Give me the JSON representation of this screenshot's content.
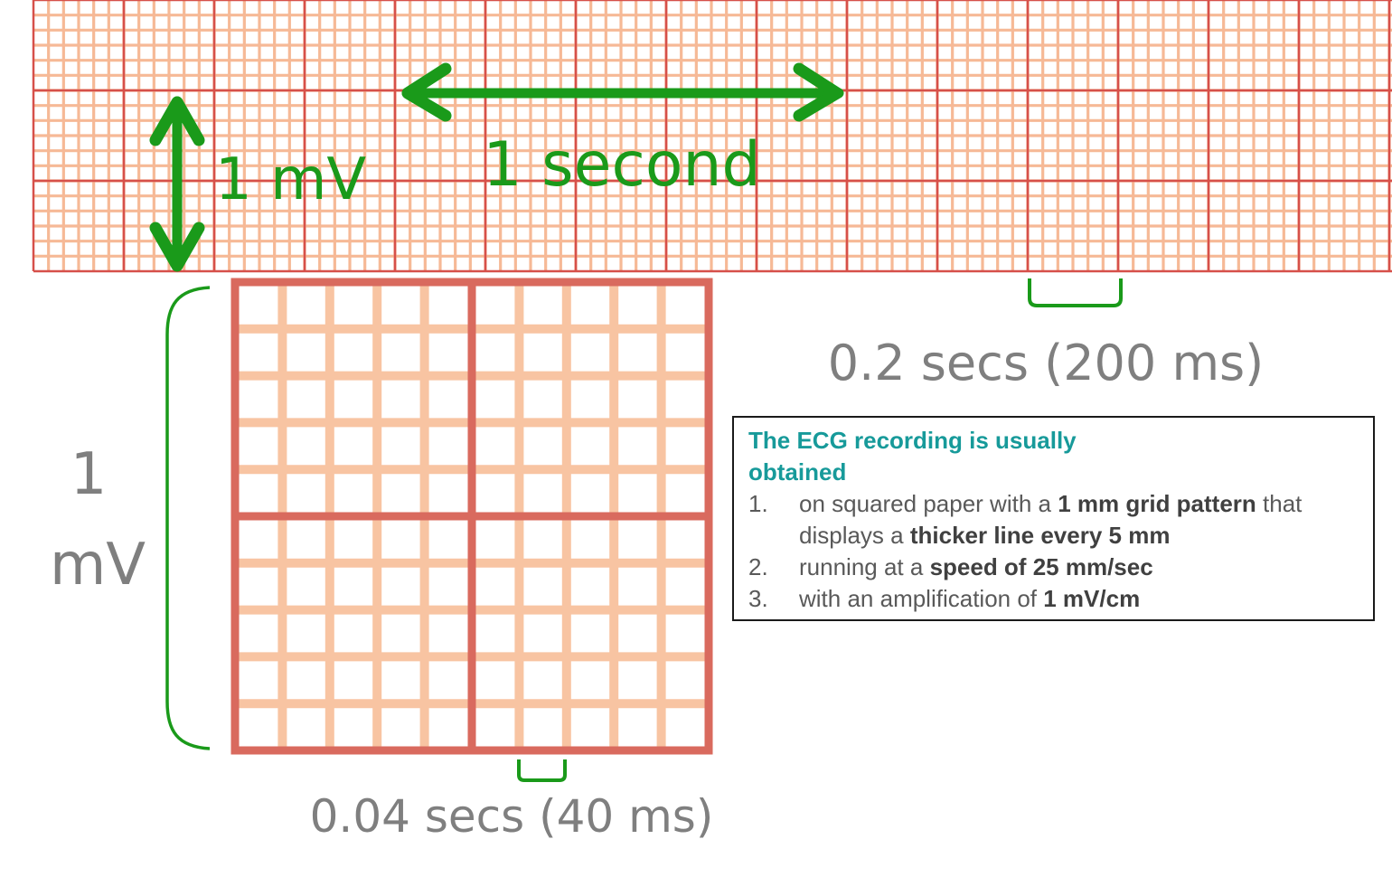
{
  "colors": {
    "paper_fine": "#f6b996",
    "paper_bold": "#d6504a",
    "zoom_fine": "#f8c4a2",
    "zoom_bold": "#d96a5e",
    "annotation_green": "#1a9a1a",
    "annotation_gray": "#7f7f7f",
    "box_title": "#179a9a",
    "box_text": "#595959"
  },
  "labels": {
    "one_second": "1 second",
    "one_mv_strip": "1 mV",
    "big_mv_number": "1",
    "big_mv_unit": "mV",
    "big_box_duration": "0.2 secs (200 ms)",
    "small_box_duration": "0.04 secs (40 ms)"
  },
  "info_box": {
    "title": "The ECG recording is usually obtained",
    "items": [
      {
        "number": "1.",
        "parts": [
          {
            "text": "on squared paper with a ",
            "bold": false
          },
          {
            "text": "1 mm grid pattern",
            "bold": true
          },
          {
            "text": " that displays a ",
            "bold": false
          },
          {
            "text": "thicker line every 5 mm",
            "bold": true
          }
        ]
      },
      {
        "number": "2.",
        "parts": [
          {
            "text": "running at a ",
            "bold": false
          },
          {
            "text": "speed of 25 mm/sec",
            "bold": true
          }
        ]
      },
      {
        "number": "3.",
        "parts": [
          {
            "text": "with an amplification of ",
            "bold": false
          },
          {
            "text": "1 mV/cm",
            "bold": true
          }
        ]
      }
    ]
  },
  "icons": [
    "double-arrow-horizontal-icon",
    "double-arrow-vertical-icon",
    "bracket-icon"
  ]
}
